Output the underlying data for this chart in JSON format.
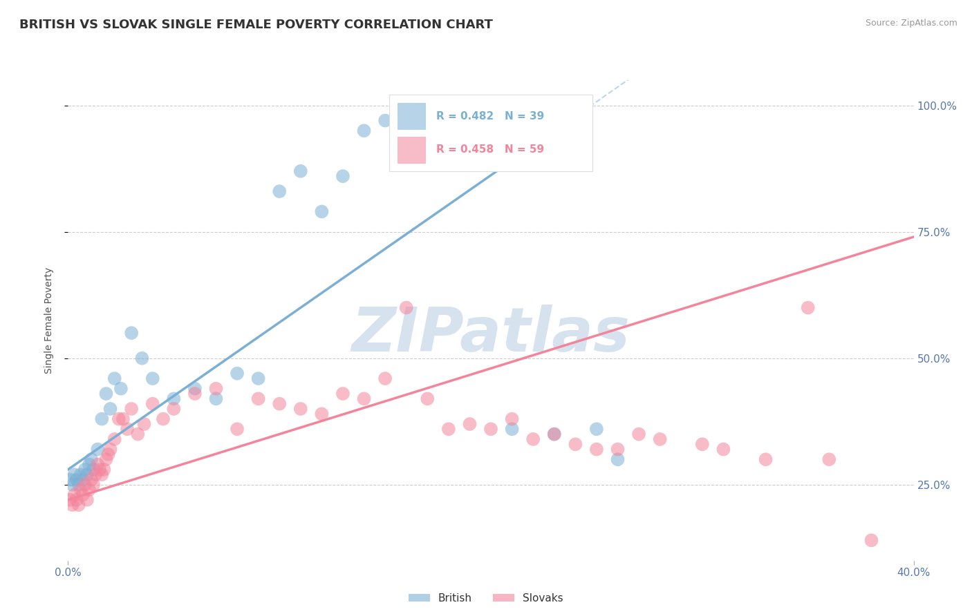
{
  "title": "BRITISH VS SLOVAK SINGLE FEMALE POVERTY CORRELATION CHART",
  "source_text": "Source: ZipAtlas.com",
  "ylabel": "Single Female Poverty",
  "xlim": [
    0.0,
    0.4
  ],
  "ylim": [
    0.1,
    1.05
  ],
  "x_tick_vals": [
    0.0,
    0.4
  ],
  "x_tick_labels": [
    "0.0%",
    "40.0%"
  ],
  "y_tick_vals": [
    0.25,
    0.5,
    0.75,
    1.0
  ],
  "y_tick_labels": [
    "25.0%",
    "50.0%",
    "75.0%",
    "100.0%"
  ],
  "british_R": 0.482,
  "british_N": 39,
  "slovak_R": 0.458,
  "slovak_N": 59,
  "british_color": "#7BAFD4",
  "slovak_color": "#F4849B",
  "watermark": "ZIPatlas",
  "watermark_color": "#C5D8E8",
  "legend_british_label": "British",
  "legend_slovak_label": "Slovaks",
  "british_x": [
    0.001,
    0.002,
    0.003,
    0.004,
    0.005,
    0.006,
    0.007,
    0.008,
    0.009,
    0.01,
    0.011,
    0.012,
    0.014,
    0.016,
    0.018,
    0.02,
    0.022,
    0.025,
    0.03,
    0.035,
    0.04,
    0.05,
    0.06,
    0.07,
    0.08,
    0.09,
    0.1,
    0.11,
    0.12,
    0.13,
    0.14,
    0.15,
    0.16,
    0.17,
    0.19,
    0.21,
    0.23,
    0.25,
    0.26
  ],
  "british_y": [
    0.26,
    0.25,
    0.27,
    0.26,
    0.25,
    0.27,
    0.26,
    0.28,
    0.27,
    0.29,
    0.3,
    0.28,
    0.32,
    0.38,
    0.43,
    0.4,
    0.46,
    0.44,
    0.55,
    0.5,
    0.46,
    0.42,
    0.44,
    0.42,
    0.47,
    0.46,
    0.83,
    0.87,
    0.79,
    0.86,
    0.95,
    0.97,
    0.99,
    0.99,
    0.99,
    0.36,
    0.35,
    0.36,
    0.3
  ],
  "slovak_x": [
    0.001,
    0.002,
    0.003,
    0.004,
    0.005,
    0.006,
    0.007,
    0.008,
    0.009,
    0.01,
    0.011,
    0.012,
    0.013,
    0.014,
    0.015,
    0.016,
    0.017,
    0.018,
    0.019,
    0.02,
    0.022,
    0.024,
    0.026,
    0.028,
    0.03,
    0.033,
    0.036,
    0.04,
    0.045,
    0.05,
    0.06,
    0.07,
    0.08,
    0.09,
    0.1,
    0.11,
    0.12,
    0.13,
    0.14,
    0.15,
    0.16,
    0.17,
    0.18,
    0.19,
    0.2,
    0.21,
    0.22,
    0.23,
    0.24,
    0.25,
    0.26,
    0.27,
    0.28,
    0.3,
    0.31,
    0.33,
    0.35,
    0.36,
    0.38
  ],
  "slovak_y": [
    0.22,
    0.21,
    0.23,
    0.22,
    0.21,
    0.24,
    0.23,
    0.25,
    0.22,
    0.24,
    0.26,
    0.25,
    0.27,
    0.29,
    0.28,
    0.27,
    0.28,
    0.3,
    0.31,
    0.32,
    0.34,
    0.38,
    0.38,
    0.36,
    0.4,
    0.35,
    0.37,
    0.41,
    0.38,
    0.4,
    0.43,
    0.44,
    0.36,
    0.42,
    0.41,
    0.4,
    0.39,
    0.43,
    0.42,
    0.46,
    0.6,
    0.42,
    0.36,
    0.37,
    0.36,
    0.38,
    0.34,
    0.35,
    0.33,
    0.32,
    0.32,
    0.35,
    0.34,
    0.33,
    0.32,
    0.3,
    0.6,
    0.3,
    0.14
  ],
  "grid_color": "#CCCCCC",
  "background_color": "#FFFFFF",
  "british_line_x": [
    0.0,
    0.22
  ],
  "british_line_y": [
    0.28,
    0.92
  ],
  "slovak_line_x": [
    0.0,
    0.4
  ],
  "slovak_line_y": [
    0.22,
    0.74
  ],
  "title_color": "#333333",
  "source_color": "#999999",
  "tick_color": "#5577AA",
  "ylabel_color": "#555555"
}
